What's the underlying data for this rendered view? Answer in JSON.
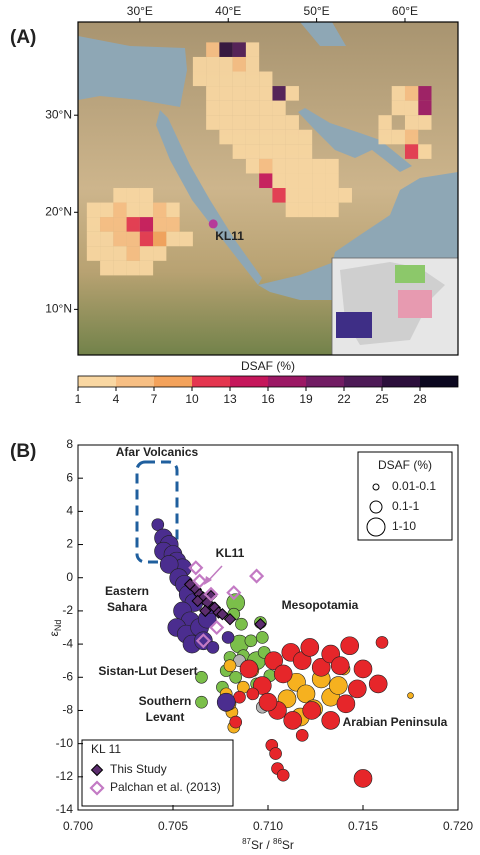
{
  "map": {
    "panel_label": "(A)",
    "xlim": [
      23,
      66
    ],
    "ylim": [
      5.3,
      39.6
    ],
    "xticks": [
      {
        "value": 30,
        "label": "30°E"
      },
      {
        "value": 40,
        "label": "40°E"
      },
      {
        "value": 50,
        "label": "50°E"
      },
      {
        "value": 60,
        "label": "60°E"
      }
    ],
    "yticks": [
      {
        "value": 10,
        "label": "10°N"
      },
      {
        "value": 20,
        "label": "20°N"
      },
      {
        "value": 30,
        "label": "30°N"
      }
    ],
    "site": {
      "label": "KL11",
      "lon": 38.3,
      "lat": 18.8,
      "color": "#b63a9a"
    },
    "cell_size": 1.5,
    "cells": [
      [
        36,
        34.5,
        2
      ],
      [
        37.5,
        34.5,
        2
      ],
      [
        39,
        34.5,
        2
      ],
      [
        40.5,
        34.5,
        5
      ],
      [
        42,
        34.5,
        2
      ],
      [
        37.5,
        36,
        5
      ],
      [
        39,
        36,
        26
      ],
      [
        40.5,
        36,
        23
      ],
      [
        42,
        36,
        2
      ],
      [
        36,
        33,
        2
      ],
      [
        37.5,
        33,
        2
      ],
      [
        39,
        33,
        2
      ],
      [
        40.5,
        33,
        2
      ],
      [
        42,
        33,
        2
      ],
      [
        43.5,
        33,
        2
      ],
      [
        45,
        31.5,
        23
      ],
      [
        43.5,
        31.5,
        2
      ],
      [
        46.5,
        31.5,
        2
      ],
      [
        37.5,
        31.5,
        2
      ],
      [
        39,
        31.5,
        2
      ],
      [
        40.5,
        31.5,
        2
      ],
      [
        42,
        31.5,
        2
      ],
      [
        37.5,
        30,
        2
      ],
      [
        39,
        30,
        2
      ],
      [
        40.5,
        30,
        2
      ],
      [
        42,
        30,
        2
      ],
      [
        43.5,
        30,
        2
      ],
      [
        45,
        30,
        2
      ],
      [
        37.5,
        28.5,
        2
      ],
      [
        39,
        28.5,
        2
      ],
      [
        40.5,
        28.5,
        2
      ],
      [
        42,
        28.5,
        2
      ],
      [
        43.5,
        28.5,
        2
      ],
      [
        45,
        28.5,
        2
      ],
      [
        46.5,
        28.5,
        2
      ],
      [
        39,
        27,
        2
      ],
      [
        40.5,
        27,
        2
      ],
      [
        42,
        27,
        2
      ],
      [
        43.5,
        27,
        2
      ],
      [
        45,
        27,
        2
      ],
      [
        46.5,
        27,
        2
      ],
      [
        48,
        27,
        2
      ],
      [
        40.5,
        25.5,
        2
      ],
      [
        42,
        25.5,
        2
      ],
      [
        43.5,
        25.5,
        2
      ],
      [
        45,
        25.5,
        2
      ],
      [
        46.5,
        25.5,
        2
      ],
      [
        48,
        25.5,
        2
      ],
      [
        42,
        24,
        2
      ],
      [
        43.5,
        24,
        5
      ],
      [
        45,
        24,
        2
      ],
      [
        46.5,
        24,
        2
      ],
      [
        48,
        24,
        2
      ],
      [
        49.5,
        24,
        2
      ],
      [
        51,
        24,
        2
      ],
      [
        43.5,
        22.5,
        14
      ],
      [
        45,
        22.5,
        2
      ],
      [
        46.5,
        22.5,
        2
      ],
      [
        48,
        22.5,
        2
      ],
      [
        49.5,
        22.5,
        2
      ],
      [
        51,
        22.5,
        2
      ],
      [
        45,
        21,
        11
      ],
      [
        46.5,
        21,
        2
      ],
      [
        48,
        21,
        2
      ],
      [
        49.5,
        21,
        2
      ],
      [
        51,
        21,
        2
      ],
      [
        52.5,
        21,
        2
      ],
      [
        46.5,
        19.5,
        2
      ],
      [
        48,
        19.5,
        2
      ],
      [
        49.5,
        19.5,
        2
      ],
      [
        51,
        19.5,
        2
      ],
      [
        61.5,
        31.5,
        17
      ],
      [
        60,
        31.5,
        5
      ],
      [
        58.5,
        31.5,
        2
      ],
      [
        61.5,
        30,
        17
      ],
      [
        60,
        30,
        2
      ],
      [
        60,
        28.5,
        2
      ],
      [
        61.5,
        28.5,
        2
      ],
      [
        57,
        27,
        2
      ],
      [
        58.5,
        27,
        2
      ],
      [
        60,
        27,
        5
      ],
      [
        60,
        25.5,
        11
      ],
      [
        61.5,
        25.5,
        2
      ],
      [
        58.5,
        30,
        2
      ],
      [
        57,
        28.5,
        2
      ],
      [
        27,
        21,
        2
      ],
      [
        28.5,
        21,
        2
      ],
      [
        30,
        21,
        2
      ],
      [
        24,
        19.5,
        2
      ],
      [
        25.5,
        19.5,
        2
      ],
      [
        27,
        19.5,
        5
      ],
      [
        28.5,
        19.5,
        2
      ],
      [
        30,
        19.5,
        2
      ],
      [
        31.5,
        19.5,
        5
      ],
      [
        33,
        19.5,
        2
      ],
      [
        24,
        18,
        2
      ],
      [
        25.5,
        18,
        5
      ],
      [
        27,
        18,
        5
      ],
      [
        28.5,
        18,
        11
      ],
      [
        30,
        18,
        14
      ],
      [
        31.5,
        18,
        5
      ],
      [
        33,
        18,
        5
      ],
      [
        24,
        16.5,
        2
      ],
      [
        25.5,
        16.5,
        2
      ],
      [
        27,
        16.5,
        5
      ],
      [
        28.5,
        16.5,
        5
      ],
      [
        30,
        16.5,
        11
      ],
      [
        31.5,
        16.5,
        8
      ],
      [
        33,
        16.5,
        2
      ],
      [
        34.5,
        16.5,
        2
      ],
      [
        24,
        15,
        2
      ],
      [
        25.5,
        15,
        2
      ],
      [
        27,
        15,
        2
      ],
      [
        28.5,
        15,
        5
      ],
      [
        30,
        15,
        2
      ],
      [
        31.5,
        15,
        2
      ],
      [
        25.5,
        13.5,
        2
      ],
      [
        27,
        13.5,
        2
      ],
      [
        28.5,
        13.5,
        2
      ],
      [
        30,
        13.5,
        2
      ]
    ],
    "colorbar": {
      "label": "DSAF (%)",
      "clim": [
        1,
        31
      ],
      "ticks": [
        1,
        4,
        7,
        10,
        13,
        16,
        19,
        22,
        25,
        28
      ],
      "colors": [
        "#f9d7a2",
        "#f7bf84",
        "#f3a25b",
        "#e4364f",
        "#c5175b",
        "#9b1864",
        "#711c63",
        "#4d1a56",
        "#2c0f3c",
        "#0c0820"
      ]
    }
  },
  "chart_data": {
    "type": "scatter",
    "panel_label": "(B)",
    "xlabel": [
      "87",
      "Sr / ",
      "86",
      "Sr"
    ],
    "ylabel": {
      "main": "ε",
      "sub": "Nd"
    },
    "xlim": [
      0.7,
      0.72
    ],
    "ylim": [
      -14,
      8
    ],
    "xticks": [
      {
        "value": 0.7,
        "label": "0.700"
      },
      {
        "value": 0.705,
        "label": "0.705"
      },
      {
        "value": 0.71,
        "label": "0.710"
      },
      {
        "value": 0.715,
        "label": "0.715"
      },
      {
        "value": 0.72,
        "label": "0.720"
      }
    ],
    "yticks": [
      -14,
      -12,
      -10,
      -8,
      -6,
      -4,
      -2,
      0,
      2,
      4,
      6,
      8
    ],
    "legend": "lower left",
    "legend_title": "KL 11",
    "size_legend": {
      "title": "DSAF (%)",
      "labels": [
        "0.01-0.1",
        "0.1-1",
        "1-10"
      ]
    },
    "series": [
      {
        "name": "Mesopotamia",
        "marker": "circle",
        "color": "#7bbf4a",
        "x": [
          0.7083,
          0.7082,
          0.7085,
          0.7091,
          0.7087,
          0.7094,
          0.7098,
          0.708,
          0.7078,
          0.7076,
          0.7083,
          0.7094,
          0.7097,
          0.7086,
          0.7096,
          0.7065,
          0.7101,
          0.7065
        ],
        "values": [
          -1.5,
          -2.2,
          -4.0,
          -3.8,
          -4.7,
          -5.0,
          -4.5,
          -4.8,
          -5.6,
          -6.6,
          -6.0,
          -6.4,
          -3.6,
          -2.8,
          -2.7,
          -6.0,
          -5.9,
          -7.5
        ],
        "sizes": [
          5,
          0.5,
          5,
          0.5,
          0.5,
          5,
          0.5,
          0.5,
          0.5,
          0.5,
          0.5,
          0.5,
          0.5,
          0.5,
          0.5,
          0.5,
          0.5,
          0.5
        ]
      },
      {
        "name": "Sistan-Lut Desert",
        "marker": "circle",
        "color": "#b4b4b4",
        "x": [
          0.7097,
          0.7085
        ],
        "values": [
          -7.8,
          -5.0
        ],
        "sizes": [
          0.5,
          0.5
        ]
      },
      {
        "name": "Southern Levant",
        "marker": "circle",
        "color": "#f6b11f",
        "x": [
          0.708,
          0.7078,
          0.7081,
          0.7082,
          0.7087,
          0.7115,
          0.712,
          0.7124,
          0.7133,
          0.7137,
          0.7128,
          0.714,
          0.711,
          0.7117,
          0.7175,
          0.7092,
          0.708
        ],
        "values": [
          -5.3,
          -7.0,
          -8.1,
          -9.0,
          -6.6,
          -6.3,
          -7.0,
          -7.9,
          -7.2,
          -6.5,
          -6.1,
          -5.5,
          -7.3,
          -8.4,
          -7.1,
          -5.6,
          -7.6
        ],
        "sizes": [
          0.5,
          0.5,
          0.5,
          0.5,
          0.5,
          5,
          5,
          5,
          5,
          5,
          5,
          0.5,
          5,
          5,
          0.05,
          0.5,
          0.5
        ]
      },
      {
        "name": "Arabian Peninsula",
        "marker": "circle",
        "color": "#e6262a",
        "x": [
          0.709,
          0.7097,
          0.7103,
          0.7108,
          0.7112,
          0.7118,
          0.7122,
          0.7128,
          0.7133,
          0.7138,
          0.7143,
          0.715,
          0.716,
          0.7158,
          0.7147,
          0.7141,
          0.7133,
          0.7123,
          0.7113,
          0.7105,
          0.71,
          0.7092,
          0.7085,
          0.7078,
          0.7083,
          0.7102,
          0.7104,
          0.7105,
          0.7108,
          0.715,
          0.7118
        ],
        "values": [
          -5.5,
          -6.5,
          -5.0,
          -5.8,
          -4.5,
          -5.0,
          -4.2,
          -5.4,
          -4.6,
          -5.3,
          -4.1,
          -5.5,
          -3.9,
          -6.4,
          -6.7,
          -7.6,
          -8.6,
          -8.0,
          -8.6,
          -8.0,
          -7.5,
          -7.0,
          -7.2,
          -7.7,
          -8.7,
          -10.1,
          -10.6,
          -11.5,
          -11.9,
          -12.1,
          -9.5
        ],
        "sizes": [
          5,
          5,
          5,
          5,
          5,
          5,
          5,
          5,
          5,
          5,
          5,
          5,
          0.5,
          5,
          5,
          5,
          5,
          5,
          5,
          5,
          5,
          0.5,
          0.5,
          0.5,
          0.5,
          0.5,
          0.5,
          0.5,
          0.5,
          5,
          0.5
        ]
      },
      {
        "name": "Eastern Sahara",
        "marker": "circle",
        "color": "#4b2d8f",
        "x": [
          0.7042,
          0.7045,
          0.7048,
          0.7045,
          0.705,
          0.7052,
          0.7055,
          0.7048,
          0.7053,
          0.7056,
          0.7058,
          0.7061,
          0.7055,
          0.7059,
          0.7052,
          0.7057,
          0.7064,
          0.706,
          0.7068,
          0.7066,
          0.707,
          0.7078,
          0.7079,
          0.7071
        ],
        "values": [
          3.2,
          2.4,
          2.0,
          1.6,
          1.4,
          1.0,
          0.6,
          0.8,
          0.0,
          -0.4,
          -1.0,
          -1.5,
          -2.0,
          -2.6,
          -3.0,
          -3.4,
          -3.0,
          -4.0,
          -2.5,
          -3.8,
          -1.8,
          -7.5,
          -3.6,
          -4.2
        ],
        "sizes": [
          0.5,
          5,
          5,
          5,
          5,
          5,
          5,
          5,
          5,
          5,
          5,
          5,
          5,
          5,
          5,
          5,
          5,
          5,
          5,
          5,
          0.5,
          5,
          0.5,
          0.5
        ]
      },
      {
        "name": "This Study",
        "marker": "diamond",
        "color": "#5c2d6e",
        "x": [
          0.7059,
          0.7062,
          0.7064,
          0.7066,
          0.7068,
          0.7072,
          0.7074,
          0.7076,
          0.708,
          0.7063,
          0.7067,
          0.7096,
          0.707
        ],
        "values": [
          -0.4,
          -0.7,
          -1.0,
          -1.2,
          -1.5,
          -1.8,
          -2.1,
          -2.2,
          -2.5,
          -1.4,
          -2.0,
          -2.8,
          -1.1
        ]
      },
      {
        "name": "Palchan et al. (2013)",
        "marker": "open-diamond",
        "color": "#c37ac4",
        "x": [
          0.7062,
          0.7064,
          0.707,
          0.7082,
          0.7094,
          0.7066,
          0.7073
        ],
        "values": [
          0.6,
          -0.2,
          -1.0,
          -0.9,
          0.1,
          -3.8,
          -3.0
        ]
      }
    ],
    "annotations": [
      {
        "lines": [
          "Afar Volcanics"
        ],
        "color": "#1f5f9e"
      },
      {
        "lines": [
          "KL11"
        ],
        "color": "#c07ac0"
      },
      {
        "lines": [
          "Eastern",
          "Sahara"
        ],
        "color": "#4b2d8f"
      },
      {
        "lines": [
          "Mesopotamia"
        ],
        "color": "#7ab648"
      },
      {
        "lines": [
          "Sistan-Lut Desert"
        ],
        "color": "#9a9a9a"
      },
      {
        "lines": [
          "Southern",
          "Levant"
        ],
        "color": "#f5b120"
      },
      {
        "lines": [
          "Arabian Peninsula"
        ],
        "color": "#e42b25"
      }
    ]
  }
}
